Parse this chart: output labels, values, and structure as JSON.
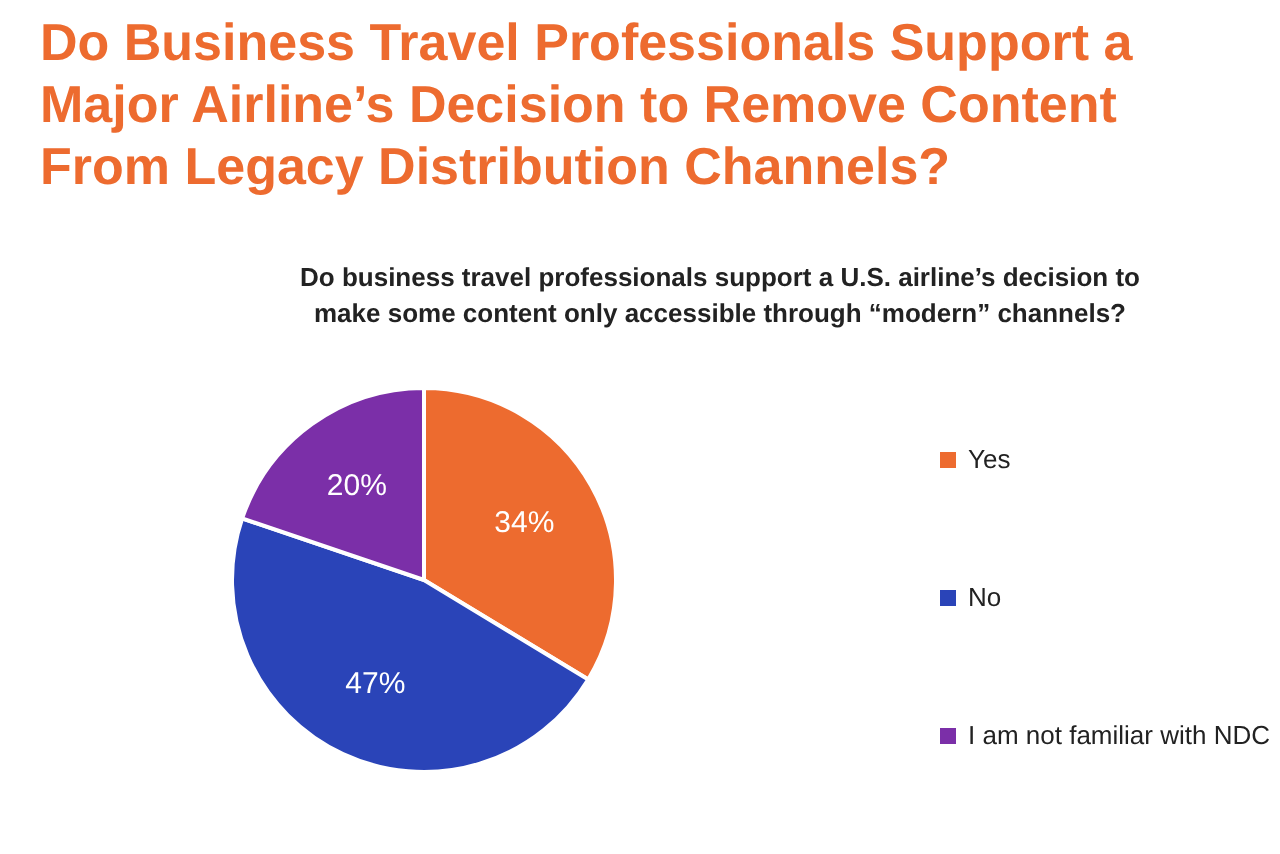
{
  "chart_data": {
    "type": "pie",
    "title": "Do Business Travel Professionals Support a Major Airline’s Decision to Remove Content From Legacy Distribution Channels?",
    "subtitle": "Do business travel professionals support a U.S. airline’s decision to make some content only accessible through “modern” channels?",
    "categories": [
      "Yes",
      "No",
      "I am not familiar with NDC"
    ],
    "values": [
      34,
      47,
      20
    ],
    "colors": [
      "#ed6b2f",
      "#2a44b8",
      "#7b2fa8"
    ],
    "value_labels": [
      "34%",
      "47%",
      "20%"
    ],
    "legend": "right"
  }
}
